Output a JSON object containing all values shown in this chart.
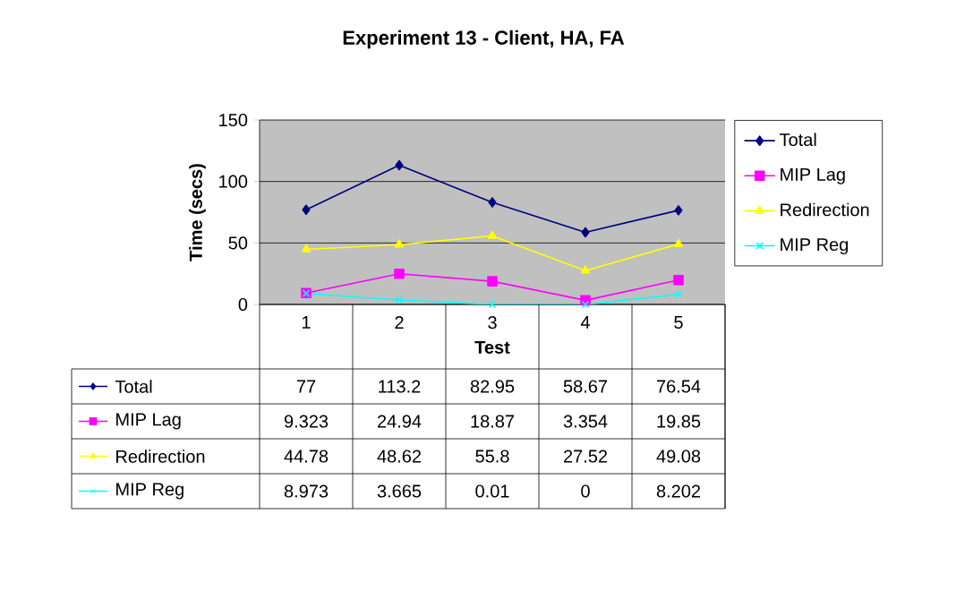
{
  "chart_data": {
    "type": "line",
    "title": "Experiment 13 - Client, HA, FA",
    "xlabel": "Test",
    "ylabel": "Time (secs)",
    "categories": [
      "1",
      "2",
      "3",
      "4",
      "5"
    ],
    "ylim": [
      0,
      150
    ],
    "yticks": [
      0,
      50,
      100,
      150
    ],
    "grid": "y",
    "legend": "right",
    "data_labels": true,
    "series": [
      {
        "name": "Total",
        "color": "#000080",
        "marker": "diamond",
        "values": [
          77,
          113.2,
          82.95,
          58.67,
          76.54
        ]
      },
      {
        "name": "MIP Lag",
        "color": "#ff00ff",
        "marker": "square",
        "values": [
          9.323,
          24.94,
          18.87,
          3.354,
          19.85
        ]
      },
      {
        "name": "Redirection",
        "color": "#ffff00",
        "marker": "triangle",
        "values": [
          44.78,
          48.62,
          55.8,
          27.52,
          49.08
        ]
      },
      {
        "name": "MIP Reg",
        "color": "#00ffff",
        "marker": "cross",
        "values": [
          8.973,
          3.665,
          0.01,
          0,
          8.202
        ]
      }
    ]
  }
}
